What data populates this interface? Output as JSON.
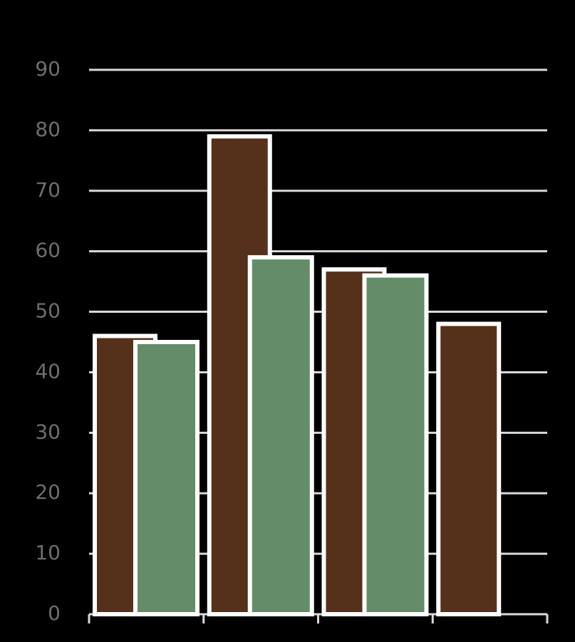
{
  "chart_data": {
    "type": "bar",
    "categories": [
      null,
      null,
      null,
      null
    ],
    "series": [
      {
        "color": "#55311c",
        "values": [
          46,
          79,
          57,
          48
        ]
      },
      {
        "color": "#648c69",
        "values": [
          45,
          59,
          56,
          null
        ]
      }
    ],
    "ylim": [
      0,
      90
    ],
    "yticks": [
      0,
      10,
      20,
      30,
      40,
      50,
      60,
      70,
      80,
      90
    ],
    "grid": true
  }
}
